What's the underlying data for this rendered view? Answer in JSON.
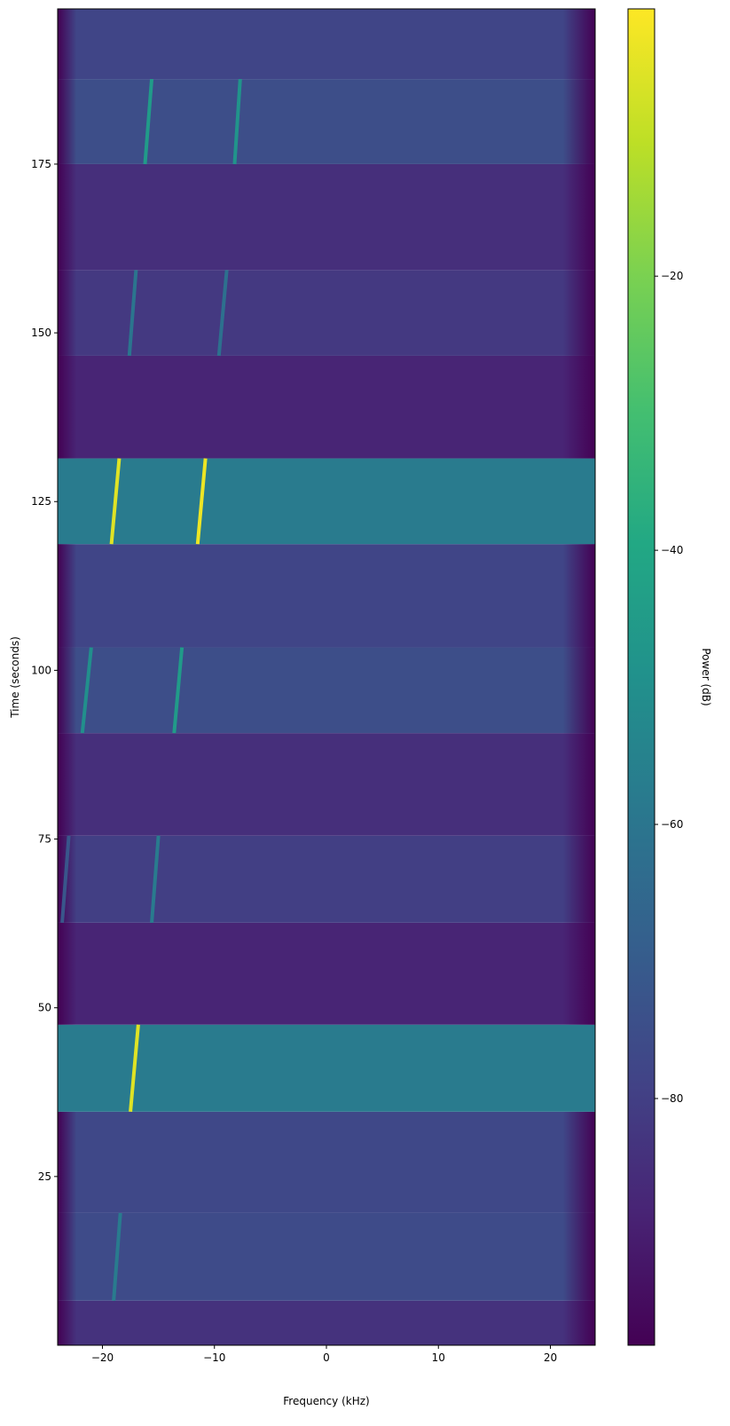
{
  "chart_data": {
    "type": "spectrogram",
    "xlabel": "Frequency (kHz)",
    "ylabel": "Time (seconds)",
    "colorbar_label": "Power (dB)",
    "colormap": "viridis",
    "xlim": [
      -24,
      24
    ],
    "ylim": [
      0,
      198
    ],
    "clim": [
      -98,
      -0.5
    ],
    "xticks": [
      {
        "value": -20,
        "label": "−20"
      },
      {
        "value": -10,
        "label": "−10"
      },
      0,
      10,
      20
    ],
    "yticks": [
      25,
      50,
      75,
      100,
      125,
      150,
      175
    ],
    "cticks": [
      {
        "value": -20,
        "label": "−20"
      },
      {
        "value": -40,
        "label": "−40"
      },
      {
        "value": -60,
        "label": "−60"
      },
      {
        "value": -80,
        "label": "−80"
      }
    ],
    "segments": [
      {
        "t0": 0,
        "t1": 6.6,
        "power": -84
      },
      {
        "t0": 6.6,
        "t1": 19.6,
        "power": -76
      },
      {
        "t0": 19.6,
        "t1": 34.6,
        "power": -77
      },
      {
        "t0": 34.6,
        "t1": 47.5,
        "power": -58
      },
      {
        "t0": 47.5,
        "t1": 62.6,
        "power": -88
      },
      {
        "t0": 62.6,
        "t1": 75.5,
        "power": -80
      },
      {
        "t0": 75.5,
        "t1": 90.7,
        "power": -85
      },
      {
        "t0": 90.7,
        "t1": 103.4,
        "power": -75
      },
      {
        "t0": 103.4,
        "t1": 118.7,
        "power": -78
      },
      {
        "t0": 118.7,
        "t1": 131.4,
        "power": -58
      },
      {
        "t0": 131.4,
        "t1": 146.6,
        "power": -88
      },
      {
        "t0": 146.6,
        "t1": 159.3,
        "power": -82
      },
      {
        "t0": 159.3,
        "t1": 175,
        "power": -85
      },
      {
        "t0": 175,
        "t1": 187.6,
        "power": -75
      },
      {
        "t0": 187.6,
        "t1": 198,
        "power": -78
      }
    ],
    "tones": [
      {
        "t0": 6.6,
        "t1": 19.6,
        "f0": -19,
        "f1": -18.4,
        "power": -58
      },
      {
        "t0": 34.6,
        "t1": 47.5,
        "f0": -17.5,
        "f1": -16.8,
        "power": -5
      },
      {
        "t0": 62.6,
        "t1": 75.5,
        "f0": -23.6,
        "f1": -23,
        "power": -72
      },
      {
        "t0": 62.6,
        "t1": 75.5,
        "f0": -15.6,
        "f1": -15,
        "power": -58
      },
      {
        "t0": 90.7,
        "t1": 103.4,
        "f0": -21.8,
        "f1": -21,
        "power": -50
      },
      {
        "t0": 90.7,
        "t1": 103.4,
        "f0": -13.6,
        "f1": -12.9,
        "power": -45
      },
      {
        "t0": 118.7,
        "t1": 131.4,
        "f0": -19.2,
        "f1": -18.5,
        "power": -5
      },
      {
        "t0": 118.7,
        "t1": 131.4,
        "f0": -11.5,
        "f1": -10.8,
        "power": -3
      },
      {
        "t0": 146.6,
        "t1": 159.3,
        "f0": -17.6,
        "f1": -17,
        "power": -60
      },
      {
        "t0": 146.6,
        "t1": 159.3,
        "f0": -9.6,
        "f1": -8.9,
        "power": -62
      },
      {
        "t0": 175,
        "t1": 187.6,
        "f0": -16.2,
        "f1": -15.6,
        "power": -45
      },
      {
        "t0": 175,
        "t1": 187.6,
        "f0": -8.2,
        "f1": -7.7,
        "power": -48
      }
    ]
  }
}
